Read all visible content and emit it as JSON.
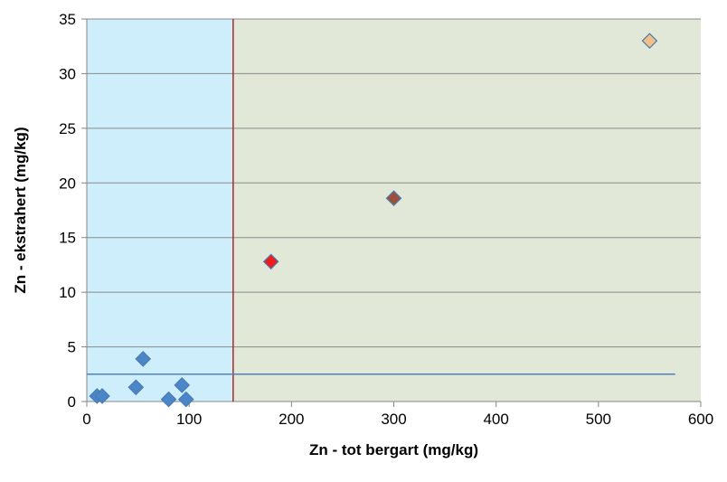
{
  "chart_data": {
    "type": "scatter",
    "title": "",
    "xlabel": "Zn - tot bergart (mg/kg)",
    "ylabel": "Zn - ekstrahert (mg/kg)",
    "xlim": [
      0,
      600
    ],
    "ylim": [
      0,
      35
    ],
    "x_ticks": [
      "0",
      "100",
      "200",
      "300",
      "400",
      "500",
      "600"
    ],
    "y_ticks": [
      "0",
      "5",
      "10",
      "15",
      "20",
      "25",
      "30",
      "35"
    ],
    "grid": "horizontal",
    "background_regions": [
      {
        "x_from": 0,
        "x_to": 143,
        "color": "#cdeefa"
      },
      {
        "x_from": 143,
        "x_to": 600,
        "color": "#e2e8d8"
      }
    ],
    "reference_lines": [
      {
        "orientation": "vertical",
        "x": 143,
        "color": "#a52a2a"
      },
      {
        "orientation": "horizontal",
        "y": 2.5,
        "x_from": 0,
        "x_to": 575,
        "color": "#4f81bd"
      }
    ],
    "series": [
      {
        "marker": "diamond",
        "color": "#4a86c8",
        "points": [
          {
            "x": 10,
            "y": 0.5
          },
          {
            "x": 15,
            "y": 0.5
          },
          {
            "x": 48,
            "y": 1.3
          },
          {
            "x": 55,
            "y": 3.9
          },
          {
            "x": 80,
            "y": 0.2
          },
          {
            "x": 93,
            "y": 1.5
          },
          {
            "x": 97,
            "y": 0.2
          }
        ]
      },
      {
        "marker": "diamond",
        "color": "#ee1c1c",
        "points": [
          {
            "x": 180,
            "y": 12.8
          }
        ]
      },
      {
        "marker": "diamond",
        "color": "#9c4f3a",
        "points": [
          {
            "x": 300,
            "y": 18.6
          }
        ]
      },
      {
        "marker": "diamond",
        "color": "#f0c088",
        "points": [
          {
            "x": 550,
            "y": 33.0
          }
        ]
      }
    ]
  }
}
